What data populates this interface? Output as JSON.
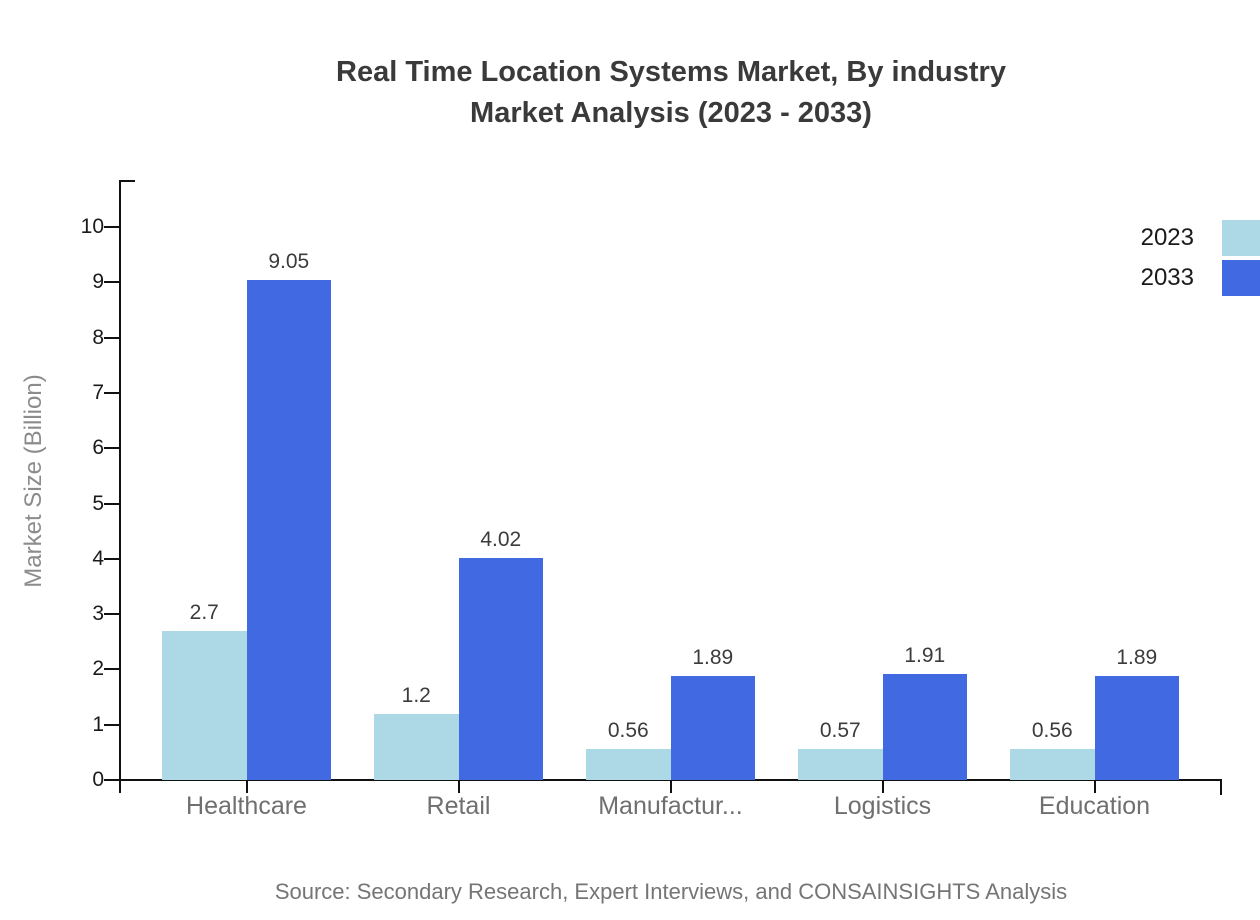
{
  "header": {
    "title_line1": "Real Time Location Systems Market, By industry",
    "title_line2": "Market Analysis (2023 - 2033)"
  },
  "footer": {
    "source": "Source: Secondary Research, Expert Interviews, and CONSAINSIGHTS Analysis"
  },
  "chart_data": {
    "type": "bar",
    "title": "Real Time Location Systems Market, By industry Market Analysis (2023 - 2033)",
    "categories": [
      "Healthcare",
      "Retail",
      "Manufactur...",
      "Logistics",
      "Education"
    ],
    "series": [
      {
        "name": "2023",
        "color": "#ADD8E6",
        "values": [
          2.7,
          1.2,
          0.56,
          0.57,
          0.56
        ]
      },
      {
        "name": "2033",
        "color": "#4169E1",
        "values": [
          9.05,
          4.02,
          1.89,
          1.91,
          1.89
        ]
      }
    ],
    "xlabel": "",
    "ylabel": "Market Size (Billion)",
    "ylim": [
      0,
      10.85
    ],
    "yticks": [
      0,
      1,
      2,
      3,
      4,
      5,
      6,
      7,
      8,
      9,
      10
    ],
    "grid": false,
    "legend_position": "top-right",
    "value_labels_shown": true,
    "background": "#ffffff"
  }
}
